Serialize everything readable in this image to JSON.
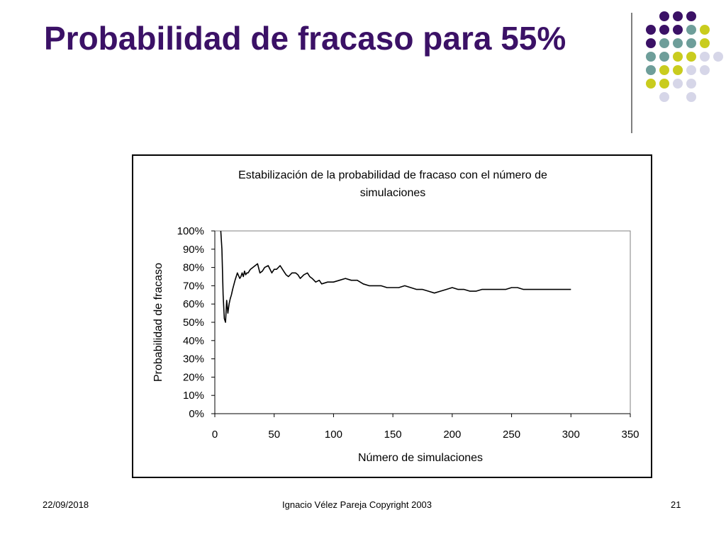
{
  "slide": {
    "title": "Probabilidad de fracaso para 55%",
    "footer_date": "22/09/2018",
    "footer_credit": "Ignacio Vélez Pareja Copyright 2003",
    "page_number": "21"
  },
  "theme": {
    "title_color": "#3b1166",
    "dot_colors": [
      "#3b1166",
      "#6e9e9a",
      "#c9cc1e",
      "#d6d6e8"
    ]
  },
  "chart_data": {
    "type": "line",
    "title_line1": "Estabilización de la probabilidad de fracaso con el número de",
    "title_line2": "simulaciones",
    "xlabel": "Número de simulaciones",
    "ylabel": "Probabilidad de fracaso",
    "xlim": [
      0,
      350
    ],
    "ylim": [
      0,
      1
    ],
    "x_ticks": [
      0,
      50,
      100,
      150,
      200,
      250,
      300,
      350
    ],
    "y_tick_labels": [
      "0%",
      "10%",
      "20%",
      "30%",
      "40%",
      "50%",
      "60%",
      "70%",
      "80%",
      "90%",
      "100%"
    ],
    "grid": false,
    "legend": "none",
    "series": [
      {
        "color": "#000000",
        "x": [
          5,
          6,
          7,
          8,
          9,
          10,
          11,
          12,
          13,
          14,
          15,
          17,
          19,
          21,
          22,
          23,
          24,
          25,
          26,
          27,
          28,
          30,
          32,
          34,
          36,
          38,
          40,
          42,
          45,
          48,
          50,
          52,
          55,
          58,
          60,
          62,
          65,
          68,
          70,
          72,
          75,
          78,
          80,
          82,
          85,
          88,
          90,
          95,
          100,
          105,
          110,
          115,
          120,
          125,
          130,
          135,
          140,
          145,
          150,
          155,
          160,
          165,
          170,
          175,
          180,
          185,
          190,
          195,
          200,
          205,
          210,
          215,
          220,
          225,
          230,
          235,
          240,
          245,
          250,
          255,
          260,
          265,
          270,
          275,
          280,
          285,
          290,
          295,
          300
        ],
        "y": [
          1.0,
          0.9,
          0.65,
          0.52,
          0.5,
          0.62,
          0.55,
          0.6,
          0.63,
          0.65,
          0.68,
          0.73,
          0.77,
          0.74,
          0.75,
          0.77,
          0.75,
          0.78,
          0.76,
          0.77,
          0.77,
          0.79,
          0.8,
          0.81,
          0.82,
          0.77,
          0.78,
          0.8,
          0.81,
          0.77,
          0.79,
          0.79,
          0.81,
          0.78,
          0.76,
          0.75,
          0.77,
          0.77,
          0.76,
          0.74,
          0.76,
          0.77,
          0.75,
          0.74,
          0.72,
          0.73,
          0.71,
          0.72,
          0.72,
          0.73,
          0.74,
          0.73,
          0.73,
          0.71,
          0.7,
          0.7,
          0.7,
          0.69,
          0.69,
          0.69,
          0.7,
          0.69,
          0.68,
          0.68,
          0.67,
          0.66,
          0.67,
          0.68,
          0.69,
          0.68,
          0.68,
          0.67,
          0.67,
          0.68,
          0.68,
          0.68,
          0.68,
          0.68,
          0.69,
          0.69,
          0.68,
          0.68,
          0.68,
          0.68,
          0.68,
          0.68,
          0.68,
          0.68,
          0.68
        ]
      }
    ]
  }
}
